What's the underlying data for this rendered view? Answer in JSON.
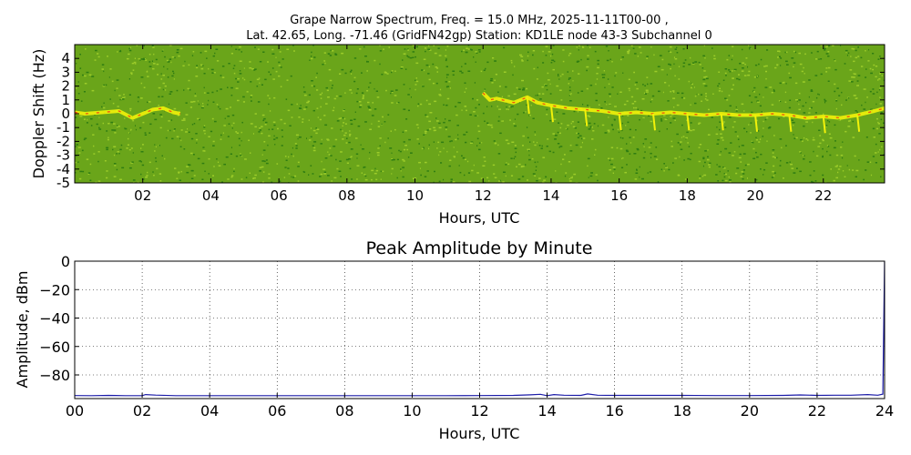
{
  "chart_data": [
    {
      "type": "heatmap",
      "title_line1": "Grape Narrow Spectrum, Freq. = 15.0 MHz, 2025-11-11T00-00 ,",
      "title_line2": "Lat.  42.65, Long. -71.46 (GridFN42gp) Station: KD1LE node 43-3 Subchannel 0",
      "xlabel": "Hours, UTC",
      "ylabel": "Doppler Shift (Hz)",
      "xlim": [
        0,
        23.8
      ],
      "ylim": [
        -5,
        5
      ],
      "x_ticks": [
        "02",
        "04",
        "06",
        "08",
        "10",
        "12",
        "14",
        "16",
        "18",
        "20",
        "22"
      ],
      "x_tick_values": [
        2,
        4,
        6,
        8,
        10,
        12,
        14,
        16,
        18,
        20,
        22
      ],
      "y_ticks": [
        "4",
        "3",
        "2",
        "1",
        "0",
        "-1",
        "-2",
        "-3",
        "-4",
        "-5"
      ],
      "y_tick_values": [
        4,
        3,
        2,
        1,
        0,
        -1,
        -2,
        -3,
        -4,
        -5
      ],
      "colors": {
        "background": "#6aa51a",
        "noise_dark": "#2f7d12",
        "noise_light": "#9ccc2a",
        "signal": "#f2f20a",
        "signal_peak": "#f04a10"
      },
      "signal_trace": [
        [
          0.0,
          0.1
        ],
        [
          0.3,
          0.0
        ],
        [
          0.8,
          0.1
        ],
        [
          1.3,
          0.2
        ],
        [
          1.7,
          -0.3
        ],
        [
          2.0,
          0.0
        ],
        [
          2.3,
          0.3
        ],
        [
          2.6,
          0.4
        ],
        [
          2.9,
          0.1
        ],
        [
          3.1,
          0.0
        ],
        [
          12.0,
          1.5
        ],
        [
          12.2,
          1.0
        ],
        [
          12.4,
          1.1
        ],
        [
          12.9,
          0.8
        ],
        [
          13.3,
          1.2
        ],
        [
          13.6,
          0.8
        ],
        [
          14.0,
          0.6
        ],
        [
          14.5,
          0.4
        ],
        [
          15.0,
          0.3
        ],
        [
          15.5,
          0.2
        ],
        [
          16.0,
          0.0
        ],
        [
          16.5,
          0.1
        ],
        [
          17.0,
          0.0
        ],
        [
          17.5,
          0.1
        ],
        [
          18.0,
          0.0
        ],
        [
          18.5,
          -0.1
        ],
        [
          19.0,
          0.0
        ],
        [
          19.5,
          -0.1
        ],
        [
          20.0,
          -0.1
        ],
        [
          20.5,
          0.0
        ],
        [
          21.0,
          -0.1
        ],
        [
          21.5,
          -0.3
        ],
        [
          22.0,
          -0.2
        ],
        [
          22.5,
          -0.3
        ],
        [
          23.0,
          -0.1
        ],
        [
          23.5,
          0.2
        ],
        [
          23.8,
          0.4
        ]
      ]
    },
    {
      "type": "line",
      "title": "Peak Amplitude by Minute",
      "xlabel": "Hours, UTC",
      "ylabel": "Amplitude, dBm",
      "xlim": [
        0,
        24
      ],
      "ylim": [
        -96,
        0
      ],
      "grid": true,
      "x_ticks": [
        "00",
        "02",
        "04",
        "06",
        "08",
        "10",
        "12",
        "14",
        "16",
        "18",
        "20",
        "22",
        "24"
      ],
      "x_tick_values": [
        0,
        2,
        4,
        6,
        8,
        10,
        12,
        14,
        16,
        18,
        20,
        22,
        24
      ],
      "y_ticks": [
        "0",
        "−20",
        "−40",
        "−60",
        "−80"
      ],
      "y_tick_values": [
        0,
        -20,
        -40,
        -60,
        -80
      ],
      "line_color": "#1c1ca8",
      "series": [
        {
          "x": [
            0,
            0.5,
            1,
            1.5,
            2,
            2.1,
            2.4,
            3,
            4,
            5,
            6,
            7,
            8,
            9,
            10,
            11,
            12,
            13,
            13.5,
            13.8,
            14,
            14.2,
            14.5,
            15,
            15.2,
            15.5,
            16,
            17,
            18,
            19,
            20,
            21,
            21.5,
            22,
            22.5,
            23,
            23.5,
            23.8,
            23.95,
            24
          ],
          "y": [
            -94.5,
            -94.6,
            -94.4,
            -94.6,
            -94.6,
            -93.8,
            -94.2,
            -94.6,
            -94.6,
            -94.6,
            -94.6,
            -94.6,
            -94.6,
            -94.6,
            -94.6,
            -94.6,
            -94.5,
            -94.4,
            -94.0,
            -93.6,
            -94.6,
            -93.8,
            -94.3,
            -94.4,
            -93.4,
            -94.3,
            -94.4,
            -94.4,
            -94.4,
            -94.5,
            -94.5,
            -94.4,
            -94.1,
            -94.4,
            -94.3,
            -94.3,
            -93.8,
            -94.3,
            -93.5,
            0
          ]
        }
      ]
    }
  ]
}
